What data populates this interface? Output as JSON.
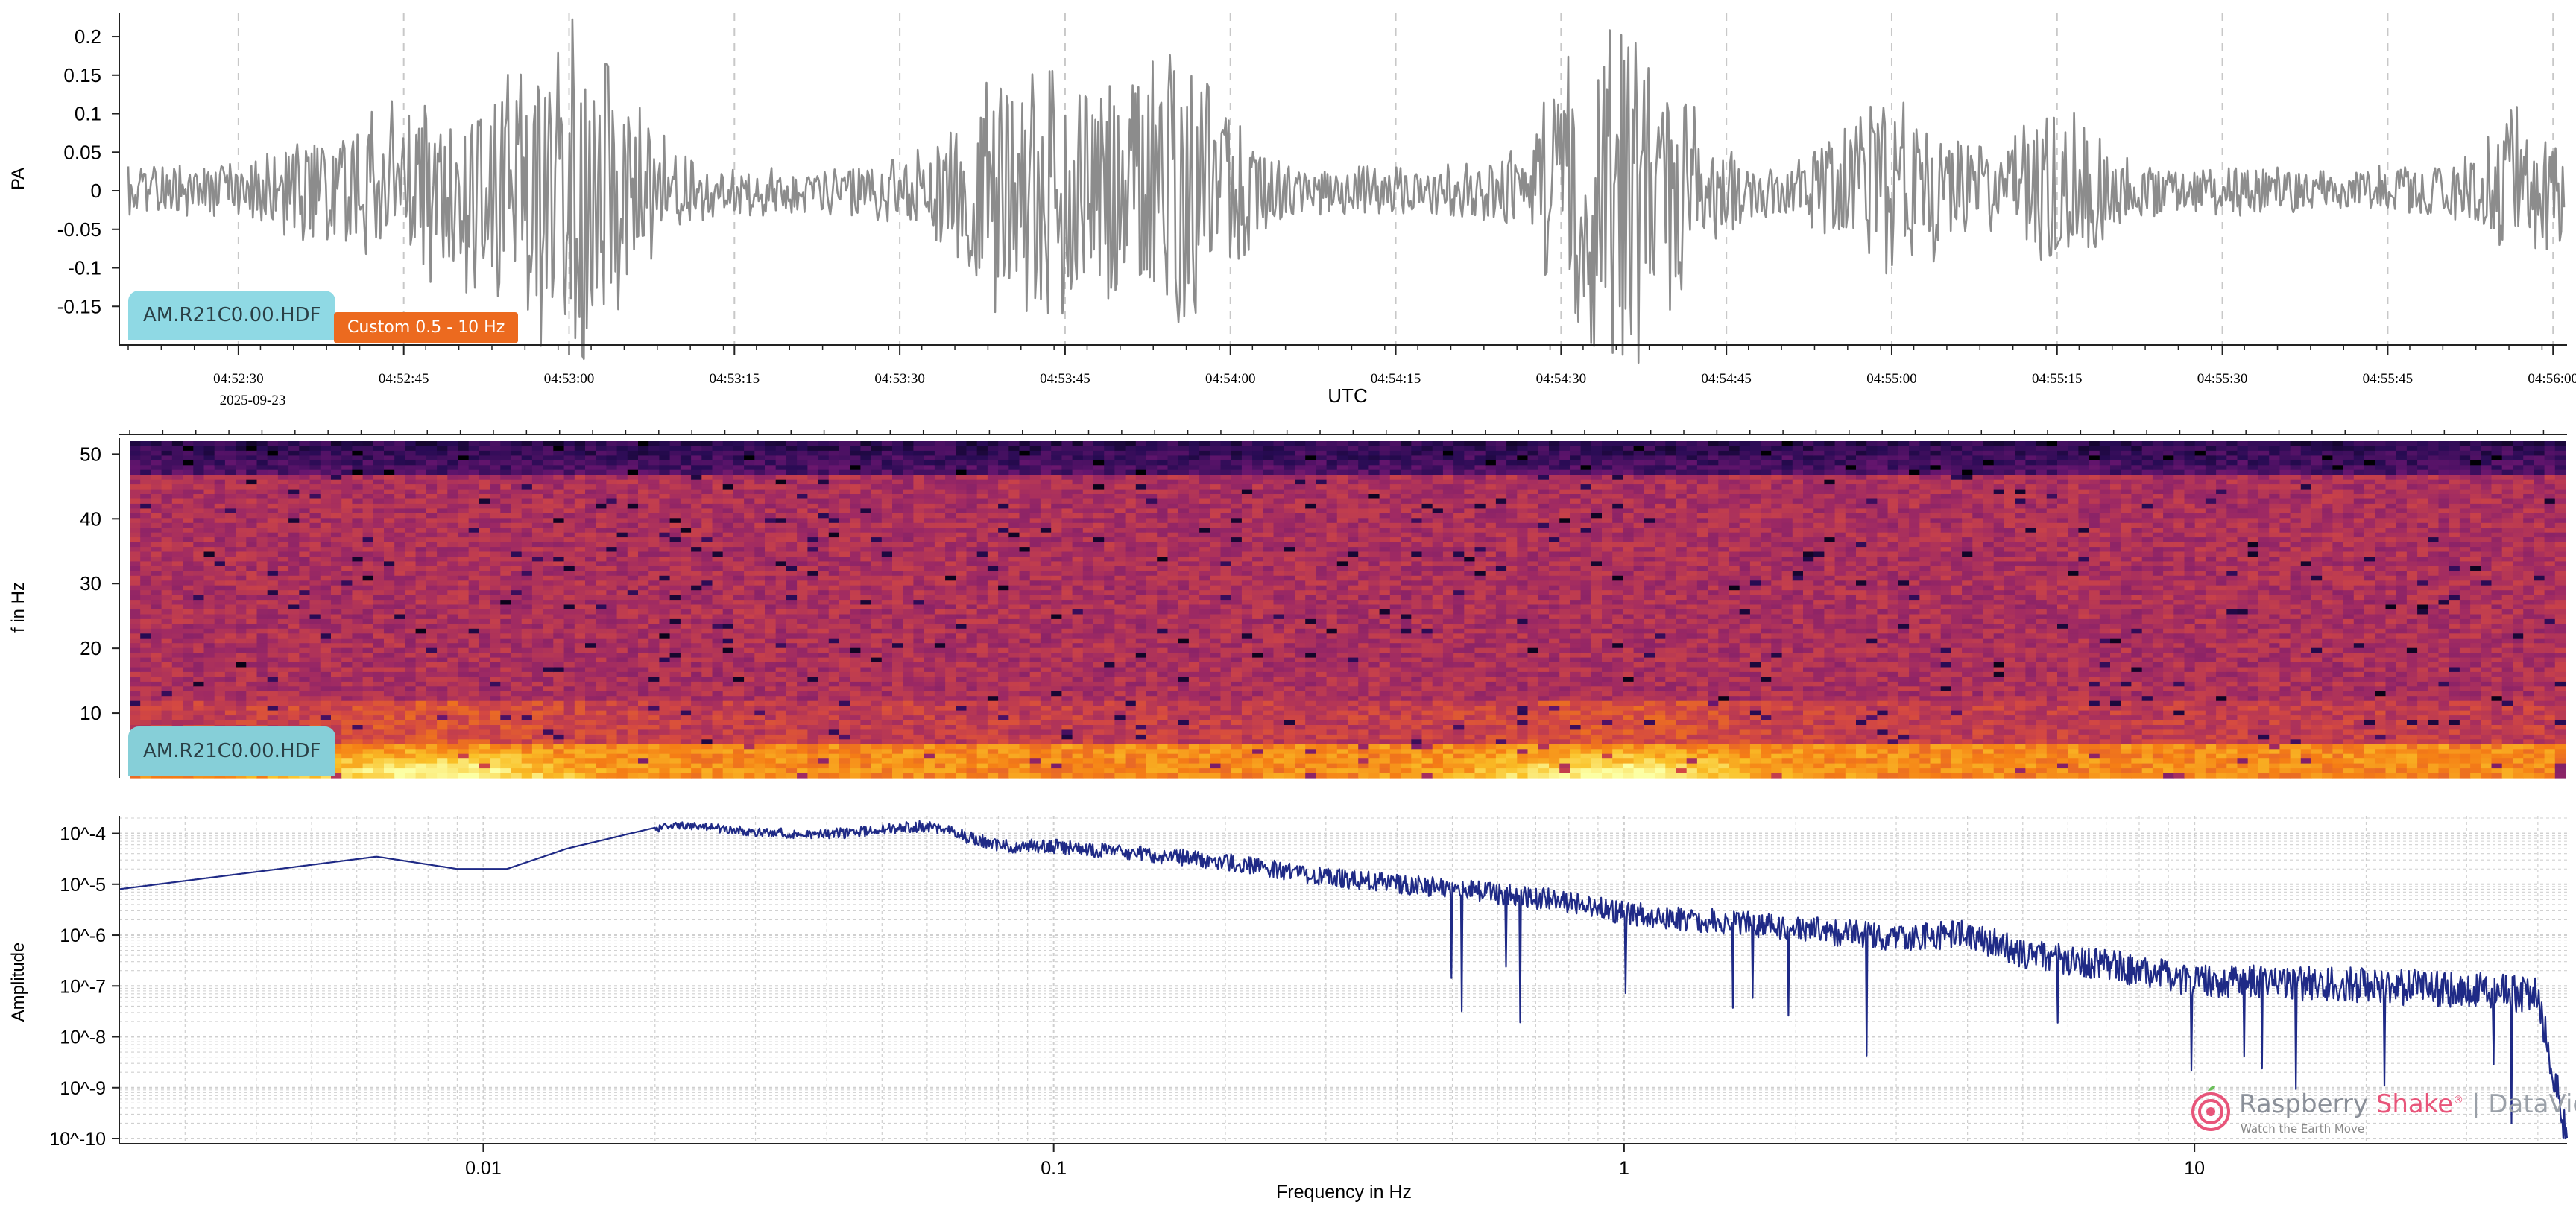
{
  "waveform": {
    "ylabel": "PA",
    "xlabel": "UTC",
    "date_label": "2025-09-23",
    "station_badge": "AM.R21C0.00.HDF",
    "filter_badge": "Custom 0.5 - 10 Hz",
    "yticks": [
      "0.2",
      "0.15",
      "0.1",
      "0.05",
      "0",
      "-0.05",
      "-0.1",
      "-0.15"
    ],
    "ytick_values": [
      0.2,
      0.15,
      0.1,
      0.05,
      0,
      -0.05,
      -0.1,
      -0.15
    ],
    "xticks": [
      "04:52:30",
      "04:52:45",
      "04:53:00",
      "04:53:15",
      "04:53:30",
      "04:53:45",
      "04:54:00",
      "04:54:15",
      "04:54:30",
      "04:54:45",
      "04:55:00",
      "04:55:15",
      "04:55:30",
      "04:55:45",
      "04:56:00"
    ],
    "colors": {
      "trace": "#8c8c8c",
      "grid": "#c8c8c8"
    }
  },
  "spectrogram": {
    "ylabel": "f in Hz",
    "station_badge": "AM.R21C0.00.HDF",
    "yticks": [
      "50",
      "40",
      "30",
      "20",
      "10"
    ],
    "ytick_values": [
      50,
      40,
      30,
      20,
      10
    ],
    "colormap": "inferno"
  },
  "spectrum": {
    "ylabel": "Amplitude",
    "xlabel": "Frequency in Hz",
    "yticks": [
      "10^-4",
      "10^-5",
      "10^-6",
      "10^-7",
      "10^-8",
      "10^-9",
      "10^-10"
    ],
    "xticks": [
      "0.01",
      "0.1",
      "1",
      "10"
    ],
    "colors": {
      "line": "#1f2a86",
      "grid": "#d0d0d0"
    }
  },
  "logo": {
    "name_a": "Raspberry ",
    "name_b": "Shake",
    "reg": "®",
    "product": "DataView",
    "tagline": "Watch the Earth Move",
    "colors": {
      "a": "#8a8f98",
      "b": "#e8557a",
      "product": "#9aa0a8"
    }
  },
  "chart_data": [
    {
      "type": "line",
      "title": "",
      "xlabel": "UTC",
      "ylabel": "PA",
      "x_range": [
        "04:52:20",
        "04:56:01"
      ],
      "ylim": [
        -0.2,
        0.23
      ],
      "grid": "vertical dashed",
      "series": [
        {
          "x": [
            "04:52:20",
            "04:52:35",
            "04:52:45",
            "04:53:00",
            "04:53:02",
            "04:53:04",
            "04:53:15",
            "04:53:30",
            "04:53:40",
            "04:53:45",
            "04:53:55",
            "04:54:00",
            "04:54:15",
            "04:54:25",
            "04:54:33",
            "04:54:35",
            "04:54:37",
            "04:54:45",
            "04:55:00",
            "04:55:15",
            "04:55:30",
            "04:55:45",
            "04:56:00"
          ],
          "y": [
            0.03,
            0.04,
            0.05,
            0.08,
            0.17,
            -0.18,
            0.07,
            0.06,
            0.09,
            0.1,
            0.16,
            -0.15,
            0.06,
            0.06,
            0.19,
            -0.18,
            0.22,
            0.06,
            0.1,
            0.05,
            0.04,
            0.05,
            0.05
          ]
        }
      ]
    },
    {
      "type": "heatmap",
      "title": "",
      "ylabel": "f in Hz",
      "x_range": [
        "04:52:20",
        "04:56:01"
      ],
      "ylim": [
        0,
        52
      ],
      "colormap": "inferno",
      "series": [
        {
          "description_values": {
            "high_energy_bands": [
              0,
              5
            ],
            "energy_peaks_at": [
              "04:52:48",
              "04:54:35"
            ]
          }
        }
      ]
    },
    {
      "type": "line",
      "title": "",
      "xlabel": "Frequency in Hz",
      "ylabel": "Amplitude",
      "xscale": "log",
      "yscale": "log",
      "xlim": [
        0.0023,
        45
      ],
      "ylim": [
        1e-10,
        0.0002
      ],
      "grid": "both",
      "series": [
        {
          "x": [
            0.0023,
            0.0065,
            0.009,
            0.011,
            0.014,
            0.02,
            0.023,
            0.03,
            0.04,
            0.06,
            0.08,
            0.1,
            0.15,
            0.2,
            0.3,
            0.5,
            0.8,
            1,
            2,
            3,
            4,
            5,
            7,
            10,
            20,
            30,
            40,
            45
          ],
          "y": [
            8e-06,
            3.5e-05,
            2e-05,
            2e-05,
            5e-05,
            0.00013,
            0.00015,
            0.00011,
            0.0001,
            0.00015,
            6e-05,
            6e-05,
            4e-05,
            3e-05,
            1.5e-05,
            9e-06,
            5e-06,
            3e-06,
            1.5e-06,
            1e-06,
            1.2e-06,
            5e-07,
            3e-07,
            1.5e-07,
            1.2e-07,
            1e-07,
            8e-08,
            1e-10
          ]
        }
      ]
    }
  ]
}
